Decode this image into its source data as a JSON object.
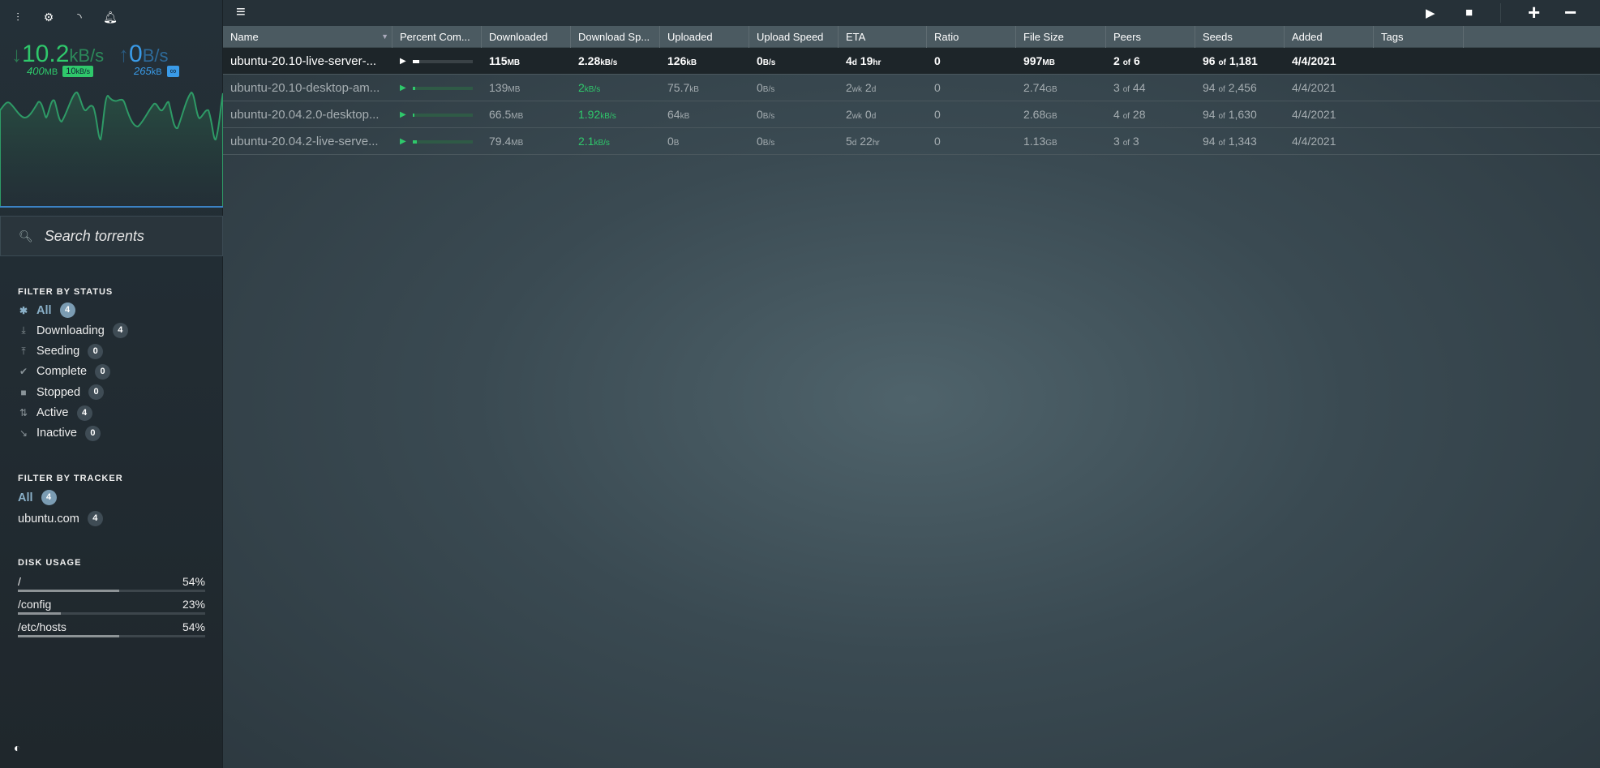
{
  "sidebar": {
    "icons": [
      "mixer-icon",
      "gear-icon",
      "rss-icon",
      "bell-icon"
    ],
    "download": {
      "value": "10.2",
      "unit": "kB/s",
      "total": "400",
      "total_unit": "MB",
      "limit": "10",
      "limit_unit": "kB/s",
      "color": "#2fc86b"
    },
    "upload": {
      "value": "0",
      "unit": "B/s",
      "total": "265",
      "total_unit": "kB",
      "limit": "∞",
      "color": "#3a9be8"
    },
    "search_placeholder": "Search torrents",
    "status_title": "FILTER BY STATUS",
    "status": [
      {
        "label": "All",
        "count": "4",
        "icon": "asterisk-icon"
      },
      {
        "label": "Downloading",
        "count": "4",
        "icon": "download-icon"
      },
      {
        "label": "Seeding",
        "count": "0",
        "icon": "upload-icon"
      },
      {
        "label": "Complete",
        "count": "0",
        "icon": "check-icon"
      },
      {
        "label": "Stopped",
        "count": "0",
        "icon": "stop-icon"
      },
      {
        "label": "Active",
        "count": "4",
        "icon": "active-arrows-icon"
      },
      {
        "label": "Inactive",
        "count": "0",
        "icon": "inactive-icon"
      }
    ],
    "tracker_title": "FILTER BY TRACKER",
    "trackers": [
      {
        "label": "All",
        "count": "4"
      },
      {
        "label": "ubuntu.com",
        "count": "4"
      }
    ],
    "disk_title": "DISK USAGE",
    "disks": [
      {
        "path": "/",
        "percent": "54%",
        "value": 54
      },
      {
        "path": "/config",
        "percent": "23%",
        "value": 23
      },
      {
        "path": "/etc/hosts",
        "percent": "54%",
        "value": 54
      }
    ]
  },
  "table": {
    "columns": [
      "Name",
      "Percent Com...",
      "Downloaded",
      "Download Sp...",
      "Uploaded",
      "Upload Speed",
      "ETA",
      "Ratio",
      "File Size",
      "Peers",
      "Seeds",
      "Added",
      "Tags"
    ],
    "rows": [
      {
        "name": "ubuntu-20.10-live-server-...",
        "percent": 11.5,
        "downloaded": "115",
        "downloaded_u": "MB",
        "dspeed": "2.28",
        "dspeed_u": "kB/s",
        "uploaded": "126",
        "uploaded_u": "kB",
        "uspeed": "0",
        "uspeed_u": "B/s",
        "eta1": "4",
        "eta1_u": "d",
        "eta2": "19",
        "eta2_u": "hr",
        "ratio": "0",
        "size": "997",
        "size_u": "MB",
        "peers": "2",
        "peers_total": "6",
        "seeds": "96",
        "seeds_total": "1,181",
        "added": "4/4/2021",
        "tags": ""
      },
      {
        "name": "ubuntu-20.10-desktop-am...",
        "percent": 5,
        "downloaded": "139",
        "downloaded_u": "MB",
        "dspeed": "2",
        "dspeed_u": "kB/s",
        "uploaded": "75.7",
        "uploaded_u": "kB",
        "uspeed": "0",
        "uspeed_u": "B/s",
        "eta1": "2",
        "eta1_u": "wk",
        "eta2": "2",
        "eta2_u": "d",
        "ratio": "0",
        "size": "2.74",
        "size_u": "GB",
        "peers": "3",
        "peers_total": "44",
        "seeds": "94",
        "seeds_total": "2,456",
        "added": "4/4/2021",
        "tags": ""
      },
      {
        "name": "ubuntu-20.04.2.0-desktop...",
        "percent": 2.5,
        "downloaded": "66.5",
        "downloaded_u": "MB",
        "dspeed": "1.92",
        "dspeed_u": "kB/s",
        "uploaded": "64",
        "uploaded_u": "kB",
        "uspeed": "0",
        "uspeed_u": "B/s",
        "eta1": "2",
        "eta1_u": "wk",
        "eta2": "0",
        "eta2_u": "d",
        "ratio": "0",
        "size": "2.68",
        "size_u": "GB",
        "peers": "4",
        "peers_total": "28",
        "seeds": "94",
        "seeds_total": "1,630",
        "added": "4/4/2021",
        "tags": ""
      },
      {
        "name": "ubuntu-20.04.2-live-serve...",
        "percent": 7,
        "downloaded": "79.4",
        "downloaded_u": "MB",
        "dspeed": "2.1",
        "dspeed_u": "kB/s",
        "uploaded": "0",
        "uploaded_u": "B",
        "uspeed": "0",
        "uspeed_u": "B/s",
        "eta1": "5",
        "eta1_u": "d",
        "eta2": "22",
        "eta2_u": "hr",
        "ratio": "0",
        "size": "1.13",
        "size_u": "GB",
        "peers": "3",
        "peers_total": "3",
        "seeds": "94",
        "seeds_total": "1,343",
        "added": "4/4/2021",
        "tags": ""
      }
    ],
    "of": "of"
  },
  "toolbar": {
    "icons": [
      "menu-icon",
      "start-icon",
      "stop-icon",
      "add-icon",
      "remove-icon"
    ]
  }
}
